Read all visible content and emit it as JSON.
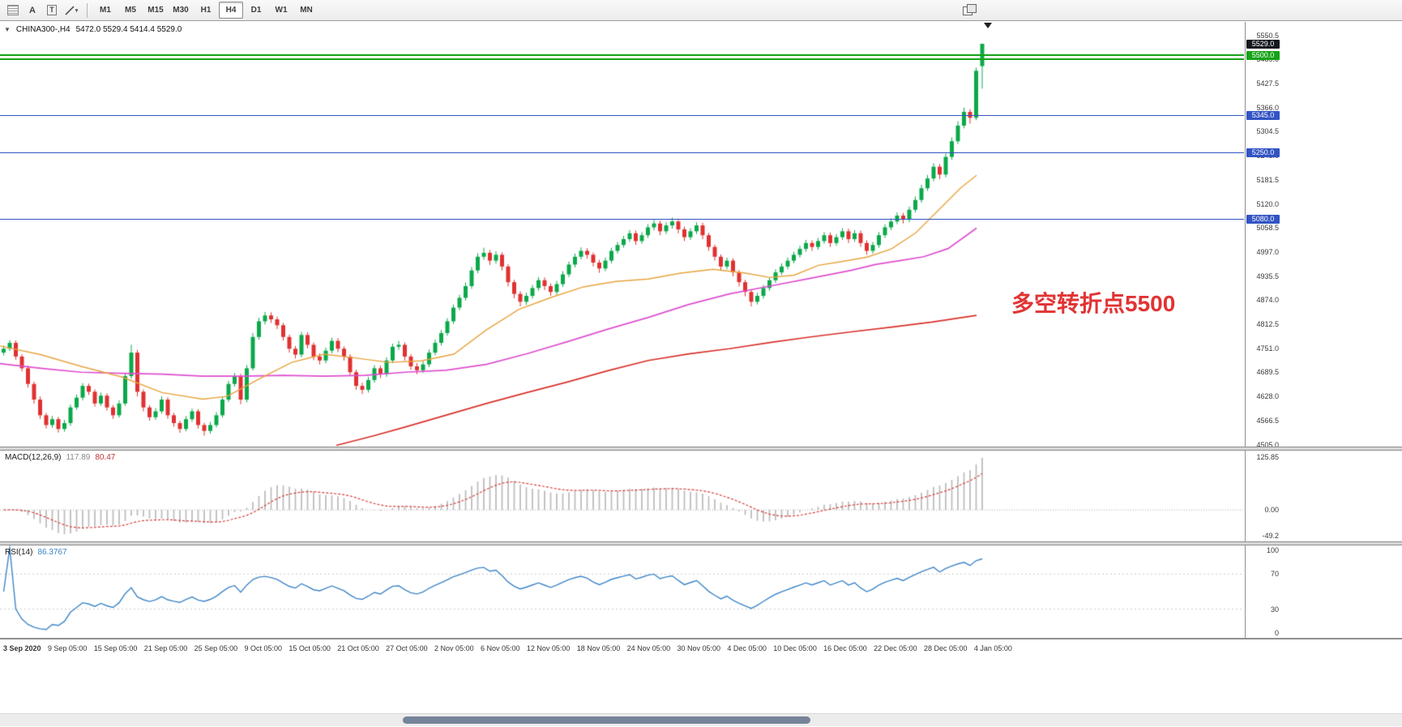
{
  "toolbar": {
    "tools": [
      {
        "id": "chart-grid"
      },
      {
        "id": "text-tool",
        "label": "A"
      },
      {
        "id": "label-tool",
        "label": "T"
      },
      {
        "id": "line-studies",
        "caret": "▾"
      }
    ],
    "timeframes": [
      "M1",
      "M5",
      "M15",
      "M30",
      "H1",
      "H4",
      "D1",
      "W1",
      "MN"
    ],
    "active_timeframe": "H4"
  },
  "chart": {
    "header": {
      "collapse_glyph": "▼",
      "symbol": "CHINA300-,H4",
      "ohlc": "5472.0 5529.4 5414.4 5529.0"
    },
    "annotation": {
      "text": "多空转折点5500",
      "color": "#e23333"
    },
    "price_scale_labels": [
      "5550.5",
      "5489.0",
      "5427.5",
      "5366.0",
      "5304.5",
      "5243.0",
      "5181.5",
      "5120.0",
      "5058.5",
      "4997.0",
      "4935.5",
      "4874.0",
      "4812.5",
      "4751.0",
      "4689.5",
      "4628.0",
      "4566.5",
      "4505.0"
    ],
    "price_tags": [
      {
        "label": "5529.0",
        "price": 5529.0,
        "bg": "#15181f"
      },
      {
        "label": "5500.0",
        "price": 5500.0,
        "bg": "#17a317"
      },
      {
        "label": "5345.0",
        "price": 5345.0,
        "bg": "#3254c4"
      },
      {
        "label": "5250.0",
        "price": 5250.0,
        "bg": "#3254c4"
      },
      {
        "label": "5080.0",
        "price": 5080.0,
        "bg": "#3254c4"
      }
    ],
    "level_lines": [
      {
        "price": 5500,
        "color": "#17a317",
        "weight": 2
      },
      {
        "price": 5490,
        "color": "#17a317",
        "weight": 2
      },
      {
        "price": 5345,
        "color": "#3254c4",
        "weight": 1
      },
      {
        "price": 5250,
        "color": "#3254c4",
        "weight": 1
      },
      {
        "price": 5080,
        "color": "#3254c4",
        "weight": 1
      }
    ],
    "colors": {
      "bull": "#0ba84a",
      "bear": "#e03131",
      "ma_fast": "#e8a33d",
      "ma_mid": "#de4fd0",
      "ma_slow": "#d9312b"
    }
  },
  "chart_data": {
    "type": "candlestick",
    "title": "CHINA300-,H4",
    "y_range": [
      4500,
      5585
    ],
    "x_labels": [
      "3 Sep 2020",
      "9 Sep 05:00",
      "15 Sep 05:00",
      "21 Sep 05:00",
      "25 Sep 05:00",
      "9 Oct 05:00",
      "15 Oct 05:00",
      "21 Oct 05:00",
      "27 Oct 05:00",
      "2 Nov 05:00",
      "6 Nov 05:00",
      "12 Nov 05:00",
      "18 Nov 05:00",
      "24 Nov 05:00",
      "30 Nov 05:00",
      "4 Dec 05:00",
      "10 Dec 05:00",
      "16 Dec 05:00",
      "22 Dec 05:00",
      "28 Dec 05:00",
      "4 Jan 05:00"
    ],
    "ohlc": [
      [
        4740,
        4758,
        4733,
        4750
      ],
      [
        4750,
        4772,
        4744,
        4765
      ],
      [
        4765,
        4771,
        4722,
        4730
      ],
      [
        4730,
        4736,
        4692,
        4700
      ],
      [
        4700,
        4707,
        4651,
        4660
      ],
      [
        4660,
        4666,
        4610,
        4620
      ],
      [
        4620,
        4628,
        4571,
        4580
      ],
      [
        4580,
        4586,
        4546,
        4555
      ],
      [
        4555,
        4578,
        4548,
        4570
      ],
      [
        4570,
        4576,
        4536,
        4545
      ],
      [
        4545,
        4568,
        4538,
        4560
      ],
      [
        4560,
        4607,
        4553,
        4600
      ],
      [
        4600,
        4633,
        4594,
        4625
      ],
      [
        4625,
        4662,
        4618,
        4655
      ],
      [
        4655,
        4661,
        4632,
        4640
      ],
      [
        4640,
        4646,
        4602,
        4610
      ],
      [
        4610,
        4638,
        4604,
        4630
      ],
      [
        4630,
        4636,
        4592,
        4600
      ],
      [
        4600,
        4606,
        4571,
        4580
      ],
      [
        4580,
        4618,
        4574,
        4610
      ],
      [
        4610,
        4688,
        4604,
        4680
      ],
      [
        4680,
        4760,
        4673,
        4740
      ],
      [
        4740,
        4747,
        4628,
        4640
      ],
      [
        4640,
        4646,
        4590,
        4600
      ],
      [
        4600,
        4606,
        4566,
        4575
      ],
      [
        4575,
        4598,
        4568,
        4590
      ],
      [
        4590,
        4628,
        4584,
        4620
      ],
      [
        4620,
        4626,
        4571,
        4580
      ],
      [
        4580,
        4586,
        4551,
        4560
      ],
      [
        4560,
        4566,
        4535,
        4545
      ],
      [
        4545,
        4578,
        4539,
        4570
      ],
      [
        4570,
        4597,
        4563,
        4590
      ],
      [
        4590,
        4596,
        4546,
        4555
      ],
      [
        4555,
        4561,
        4528,
        4540
      ],
      [
        4540,
        4563,
        4533,
        4555
      ],
      [
        4555,
        4588,
        4549,
        4580
      ],
      [
        4580,
        4627,
        4574,
        4620
      ],
      [
        4620,
        4668,
        4614,
        4660
      ],
      [
        4660,
        4688,
        4653,
        4680
      ],
      [
        4680,
        4686,
        4608,
        4620
      ],
      [
        4620,
        4708,
        4613,
        4700
      ],
      [
        4700,
        4790,
        4694,
        4780
      ],
      [
        4780,
        4829,
        4773,
        4820
      ],
      [
        4820,
        4844,
        4812,
        4835
      ],
      [
        4835,
        4843,
        4816,
        4825
      ],
      [
        4825,
        4832,
        4800,
        4810
      ],
      [
        4810,
        4816,
        4771,
        4780
      ],
      [
        4780,
        4786,
        4740,
        4750
      ],
      [
        4750,
        4757,
        4725,
        4735
      ],
      [
        4735,
        4793,
        4728,
        4785
      ],
      [
        4785,
        4792,
        4751,
        4760
      ],
      [
        4760,
        4766,
        4721,
        4730
      ],
      [
        4730,
        4738,
        4710,
        4720
      ],
      [
        4720,
        4753,
        4713,
        4745
      ],
      [
        4745,
        4778,
        4738,
        4770
      ],
      [
        4770,
        4777,
        4741,
        4750
      ],
      [
        4750,
        4756,
        4720,
        4730
      ],
      [
        4730,
        4736,
        4681,
        4690
      ],
      [
        4690,
        4696,
        4645,
        4655
      ],
      [
        4655,
        4663,
        4634,
        4645
      ],
      [
        4645,
        4678,
        4638,
        4670
      ],
      [
        4670,
        4708,
        4663,
        4700
      ],
      [
        4700,
        4707,
        4675,
        4685
      ],
      [
        4685,
        4728,
        4678,
        4720
      ],
      [
        4720,
        4763,
        4713,
        4755
      ],
      [
        4755,
        4770,
        4747,
        4760
      ],
      [
        4760,
        4766,
        4720,
        4730
      ],
      [
        4730,
        4736,
        4696,
        4705
      ],
      [
        4705,
        4713,
        4685,
        4695
      ],
      [
        4695,
        4718,
        4688,
        4710
      ],
      [
        4710,
        4748,
        4703,
        4740
      ],
      [
        4740,
        4773,
        4733,
        4765
      ],
      [
        4765,
        4798,
        4758,
        4790
      ],
      [
        4790,
        4828,
        4783,
        4820
      ],
      [
        4820,
        4863,
        4813,
        4855
      ],
      [
        4855,
        4888,
        4848,
        4880
      ],
      [
        4880,
        4919,
        4873,
        4910
      ],
      [
        4910,
        4959,
        4903,
        4950
      ],
      [
        4950,
        4994,
        4943,
        4985
      ],
      [
        4985,
        5008,
        4977,
        4995
      ],
      [
        4995,
        5002,
        4964,
        4975
      ],
      [
        4975,
        4999,
        4967,
        4990
      ],
      [
        4990,
        4996,
        4950,
        4960
      ],
      [
        4960,
        4966,
        4909,
        4920
      ],
      [
        4920,
        4926,
        4879,
        4890
      ],
      [
        4890,
        4897,
        4858,
        4870
      ],
      [
        4870,
        4893,
        4862,
        4885
      ],
      [
        4885,
        4913,
        4878,
        4905
      ],
      [
        4905,
        4933,
        4898,
        4925
      ],
      [
        4925,
        4932,
        4900,
        4910
      ],
      [
        4910,
        4917,
        4885,
        4895
      ],
      [
        4895,
        4923,
        4888,
        4915
      ],
      [
        4915,
        4948,
        4908,
        4940
      ],
      [
        4940,
        4973,
        4933,
        4965
      ],
      [
        4965,
        4993,
        4958,
        4985
      ],
      [
        4985,
        5009,
        4978,
        5000
      ],
      [
        5000,
        5007,
        4980,
        4990
      ],
      [
        4990,
        4996,
        4960,
        4970
      ],
      [
        4970,
        4977,
        4944,
        4955
      ],
      [
        4955,
        4983,
        4948,
        4975
      ],
      [
        4975,
        5008,
        4968,
        5000
      ],
      [
        5000,
        5023,
        4993,
        5015
      ],
      [
        5015,
        5038,
        5008,
        5030
      ],
      [
        5030,
        5053,
        5023,
        5045
      ],
      [
        5045,
        5052,
        5015,
        5025
      ],
      [
        5025,
        5048,
        5018,
        5040
      ],
      [
        5040,
        5068,
        5033,
        5060
      ],
      [
        5060,
        5080,
        5052,
        5070
      ],
      [
        5070,
        5077,
        5040,
        5050
      ],
      [
        5050,
        5073,
        5043,
        5065
      ],
      [
        5065,
        5085,
        5057,
        5075
      ],
      [
        5075,
        5082,
        5045,
        5055
      ],
      [
        5055,
        5062,
        5025,
        5035
      ],
      [
        5035,
        5058,
        5028,
        5050
      ],
      [
        5050,
        5073,
        5043,
        5065
      ],
      [
        5065,
        5072,
        5030,
        5040
      ],
      [
        5040,
        5046,
        5000,
        5010
      ],
      [
        5010,
        5016,
        4975,
        4985
      ],
      [
        4985,
        4991,
        4949,
        4960
      ],
      [
        4960,
        4983,
        4953,
        4975
      ],
      [
        4975,
        4981,
        4935,
        4945
      ],
      [
        4945,
        4951,
        4909,
        4920
      ],
      [
        4920,
        4926,
        4884,
        4895
      ],
      [
        4895,
        4901,
        4858,
        4870
      ],
      [
        4870,
        4893,
        4863,
        4885
      ],
      [
        4885,
        4913,
        4878,
        4905
      ],
      [
        4905,
        4932,
        4898,
        4925
      ],
      [
        4925,
        4953,
        4918,
        4945
      ],
      [
        4945,
        4968,
        4938,
        4960
      ],
      [
        4960,
        4983,
        4953,
        4975
      ],
      [
        4975,
        4998,
        4968,
        4990
      ],
      [
        4990,
        5013,
        4983,
        5005
      ],
      [
        5005,
        5028,
        4998,
        5020
      ],
      [
        5020,
        5027,
        5000,
        5010
      ],
      [
        5010,
        5033,
        5003,
        5025
      ],
      [
        5025,
        5048,
        5018,
        5040
      ],
      [
        5040,
        5047,
        5010,
        5020
      ],
      [
        5020,
        5043,
        5013,
        5035
      ],
      [
        5035,
        5058,
        5028,
        5050
      ],
      [
        5050,
        5057,
        5020,
        5030
      ],
      [
        5030,
        5053,
        5023,
        5045
      ],
      [
        5045,
        5052,
        5010,
        5020
      ],
      [
        5020,
        5027,
        4990,
        5000
      ],
      [
        5000,
        5023,
        4993,
        5015
      ],
      [
        5015,
        5048,
        5008,
        5040
      ],
      [
        5040,
        5068,
        5033,
        5060
      ],
      [
        5060,
        5083,
        5053,
        5075
      ],
      [
        5075,
        5098,
        5068,
        5090
      ],
      [
        5090,
        5097,
        5070,
        5080
      ],
      [
        5080,
        5113,
        5073,
        5105
      ],
      [
        5105,
        5139,
        5098,
        5130
      ],
      [
        5130,
        5169,
        5123,
        5160
      ],
      [
        5160,
        5194,
        5153,
        5185
      ],
      [
        5185,
        5224,
        5178,
        5215
      ],
      [
        5215,
        5222,
        5183,
        5195
      ],
      [
        5195,
        5249,
        5188,
        5240
      ],
      [
        5240,
        5290,
        5233,
        5280
      ],
      [
        5280,
        5331,
        5273,
        5320
      ],
      [
        5320,
        5366,
        5313,
        5355
      ],
      [
        5355,
        5362,
        5325,
        5340
      ],
      [
        5340,
        5468,
        5334,
        5460
      ],
      [
        5472,
        5529.4,
        5414.4,
        5529
      ]
    ],
    "ma_fast": [
      [
        0,
        4757
      ],
      [
        50,
        4735
      ],
      [
        100,
        4705
      ],
      [
        150,
        4678
      ],
      [
        200,
        4638
      ],
      [
        250,
        4621
      ],
      [
        280,
        4628
      ],
      [
        320,
        4673
      ],
      [
        360,
        4715
      ],
      [
        400,
        4736
      ],
      [
        440,
        4726
      ],
      [
        480,
        4715
      ],
      [
        520,
        4719
      ],
      [
        560,
        4736
      ],
      [
        600,
        4798
      ],
      [
        640,
        4850
      ],
      [
        680,
        4881
      ],
      [
        720,
        4908
      ],
      [
        760,
        4922
      ],
      [
        800,
        4928
      ],
      [
        840,
        4943
      ],
      [
        880,
        4953
      ],
      [
        920,
        4943
      ],
      [
        950,
        4932
      ],
      [
        980,
        4938
      ],
      [
        1010,
        4963
      ],
      [
        1040,
        4973
      ],
      [
        1070,
        4984
      ],
      [
        1100,
        5005
      ],
      [
        1130,
        5046
      ],
      [
        1160,
        5108
      ],
      [
        1185,
        5160
      ],
      [
        1205,
        5193
      ]
    ],
    "ma_mid": [
      [
        0,
        4712
      ],
      [
        50,
        4700
      ],
      [
        100,
        4690
      ],
      [
        150,
        4687
      ],
      [
        200,
        4685
      ],
      [
        250,
        4680
      ],
      [
        300,
        4680
      ],
      [
        350,
        4682
      ],
      [
        400,
        4680
      ],
      [
        450,
        4682
      ],
      [
        500,
        4690
      ],
      [
        550,
        4695
      ],
      [
        600,
        4710
      ],
      [
        650,
        4737
      ],
      [
        700,
        4768
      ],
      [
        750,
        4800
      ],
      [
        800,
        4830
      ],
      [
        850,
        4863
      ],
      [
        900,
        4890
      ],
      [
        950,
        4910
      ],
      [
        1000,
        4930
      ],
      [
        1050,
        4950
      ],
      [
        1080,
        4965
      ],
      [
        1110,
        4975
      ],
      [
        1140,
        4985
      ],
      [
        1170,
        5006
      ],
      [
        1205,
        5058
      ]
    ],
    "ma_slow": [
      [
        415,
        4503
      ],
      [
        460,
        4527
      ],
      [
        500,
        4550
      ],
      [
        550,
        4580
      ],
      [
        600,
        4610
      ],
      [
        650,
        4638
      ],
      [
        700,
        4665
      ],
      [
        750,
        4694
      ],
      [
        800,
        4720
      ],
      [
        850,
        4737
      ],
      [
        900,
        4750
      ],
      [
        950,
        4766
      ],
      [
        1000,
        4780
      ],
      [
        1050,
        4793
      ],
      [
        1100,
        4805
      ],
      [
        1150,
        4818
      ],
      [
        1205,
        4835
      ]
    ]
  },
  "macd": {
    "label": "MACD(12,26,9)",
    "main_value": "117.89",
    "signal_value": "80.47",
    "params": {
      "fast": 12,
      "slow": 26,
      "signal": 9
    },
    "scale_labels": [
      "125.85",
      "0.00",
      "-49.2"
    ]
  },
  "rsi": {
    "label": "RSI(14)",
    "value": "86.3767",
    "period": 14,
    "levels": [
      70,
      30
    ],
    "scale_labels": [
      {
        "v": 100,
        "label": "100"
      },
      {
        "v": 70,
        "label": "70"
      },
      {
        "v": 30,
        "label": "30"
      },
      {
        "v": 0,
        "label": "0"
      }
    ]
  }
}
